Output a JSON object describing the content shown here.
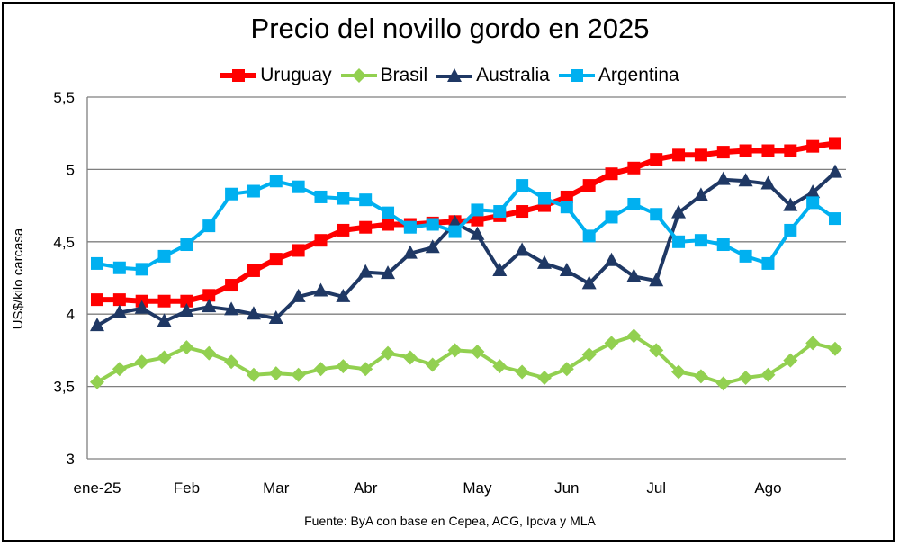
{
  "chart_data": {
    "type": "line",
    "title": "Precio del novillo gordo en 2025",
    "xlabel": "",
    "ylabel": "US$/kilo carcasa",
    "source": "Fuente: ByA con base en Cepea, ACG, Ipcva y MLA",
    "ylim": [
      3,
      5.5
    ],
    "yticks": [
      "3",
      "3,5",
      "4",
      "4,5",
      "5",
      "5,5"
    ],
    "ytick_values": [
      3,
      3.5,
      4,
      4.5,
      5,
      5.5
    ],
    "xtick_labels": [
      "ene-25",
      "Feb",
      "Mar",
      "Abr",
      "May",
      "Jun",
      "Jul",
      "Ago"
    ],
    "xtick_index": [
      0,
      4,
      8,
      12,
      17,
      21,
      25,
      30
    ],
    "n_points": 34,
    "legend_position": "top",
    "grid": true,
    "series": [
      {
        "name": "Uruguay",
        "color": "#ff0000",
        "marker": "square",
        "values": [
          4.1,
          4.1,
          4.09,
          4.09,
          4.09,
          4.13,
          4.2,
          4.3,
          4.38,
          4.44,
          4.51,
          4.58,
          4.6,
          4.62,
          4.62,
          4.63,
          4.64,
          4.65,
          4.68,
          4.71,
          4.75,
          4.81,
          4.89,
          4.97,
          5.01,
          5.07,
          5.1,
          5.1,
          5.12,
          5.13,
          5.13,
          5.13,
          5.16,
          5.18
        ]
      },
      {
        "name": "Brasil",
        "color": "#92d050",
        "marker": "diamond",
        "values": [
          3.53,
          3.62,
          3.67,
          3.7,
          3.77,
          3.73,
          3.67,
          3.58,
          3.59,
          3.58,
          3.62,
          3.64,
          3.62,
          3.73,
          3.7,
          3.65,
          3.75,
          3.74,
          3.64,
          3.6,
          3.56,
          3.62,
          3.72,
          3.8,
          3.85,
          3.75,
          3.6,
          3.57,
          3.52,
          3.56,
          3.58,
          3.68,
          3.8,
          3.76
        ]
      },
      {
        "name": "Australia",
        "color": "#1f3864",
        "marker": "triangle",
        "values": [
          3.92,
          4.01,
          4.04,
          3.95,
          4.02,
          4.05,
          4.03,
          4.0,
          3.97,
          4.12,
          4.16,
          4.12,
          4.29,
          4.28,
          4.42,
          4.46,
          4.63,
          4.55,
          4.3,
          4.44,
          4.35,
          4.3,
          4.21,
          4.37,
          4.26,
          4.23,
          4.7,
          4.82,
          4.93,
          4.92,
          4.9,
          4.75,
          4.84,
          4.98
        ]
      },
      {
        "name": "Argentina",
        "color": "#00b0f0",
        "marker": "square",
        "values": [
          4.35,
          4.32,
          4.31,
          4.4,
          4.48,
          4.61,
          4.83,
          4.85,
          4.92,
          4.88,
          4.81,
          4.8,
          4.79,
          4.7,
          4.6,
          4.62,
          4.57,
          4.72,
          4.71,
          4.89,
          4.8,
          4.74,
          4.54,
          4.67,
          4.76,
          4.69,
          4.5,
          4.51,
          4.48,
          4.4,
          4.35,
          4.58,
          4.77,
          4.66
        ]
      }
    ]
  }
}
